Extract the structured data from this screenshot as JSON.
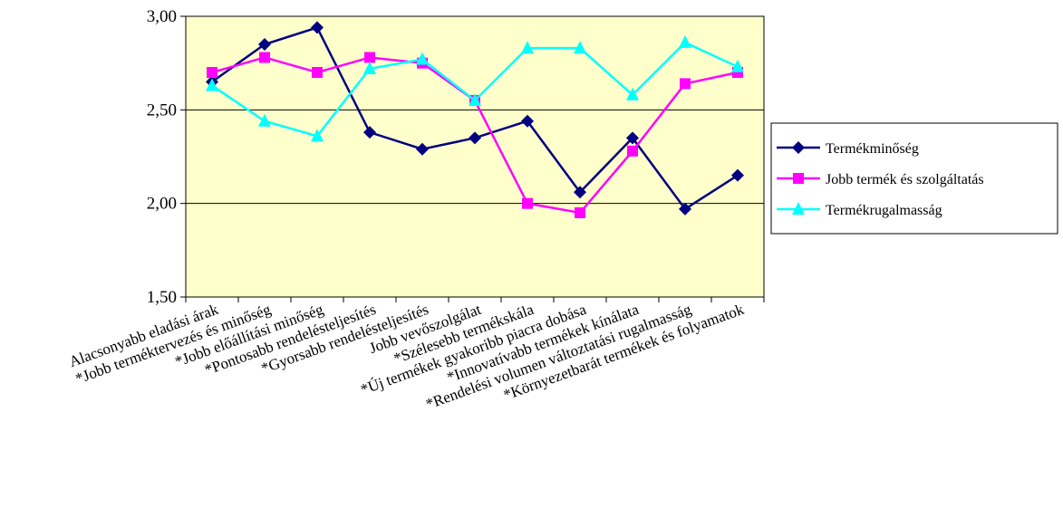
{
  "chart_data": {
    "type": "line",
    "categories": [
      "Alacsonyabb eladási árak",
      "*Jobb terméktervezés és minőség",
      "*Jobb előállítási minőség",
      "*Pontosabb rendelésteljesítés",
      "*Gyorsabb rendelésteljesítés",
      "Jobb vevőszolgálat",
      "*Szélesebb termékskála",
      "*Új termékek gyakoribb piacra dobása",
      "*Innovatívabb termékek kínálata",
      "*Rendelési volumen változtatási rugalmasság",
      "*Környezetbarát termékek és folyamatok"
    ],
    "series": [
      {
        "name": "Termékminőség",
        "color": "#000080",
        "marker": "diamond",
        "values": [
          2.65,
          2.85,
          2.94,
          2.38,
          2.29,
          2.35,
          2.44,
          2.06,
          2.35,
          1.97,
          2.15
        ]
      },
      {
        "name": "Jobb termék és szolgáltatás",
        "color": "#FF00FF",
        "marker": "square",
        "values": [
          2.7,
          2.78,
          2.7,
          2.78,
          2.75,
          2.55,
          2.0,
          1.95,
          2.28,
          2.64,
          2.7
        ]
      },
      {
        "name": "Termékrugalmasság",
        "color": "#00FFFF",
        "marker": "triangle",
        "values": [
          2.63,
          2.44,
          2.36,
          2.72,
          2.77,
          2.55,
          2.83,
          2.83,
          2.58,
          2.86,
          2.73
        ]
      }
    ],
    "ylim": [
      1.5,
      3.0
    ],
    "yticks": [
      "1,50",
      "2,00",
      "2,50",
      "3,00"
    ],
    "ytick_values": [
      1.5,
      2.0,
      2.5,
      3.0
    ],
    "grid": true,
    "legend": "right",
    "plot_background": "#FFFFCC",
    "title": "",
    "xlabel": "",
    "ylabel": ""
  }
}
